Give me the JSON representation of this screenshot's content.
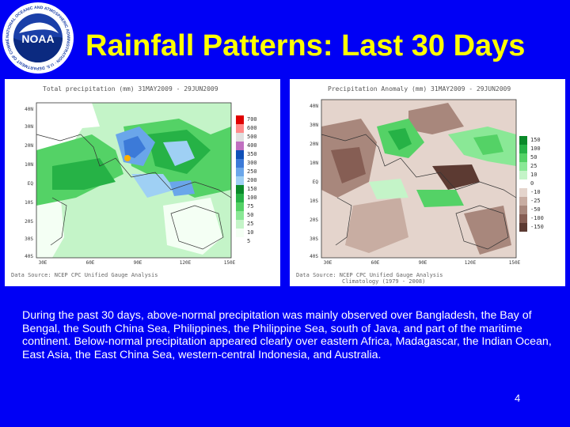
{
  "slide": {
    "title": "Rainfall Patterns: Last 30 Days",
    "logo_text": "NOAA",
    "logo_ring_text": "NATIONAL OCEANIC AND ATMOSPHERIC ADMINISTRATION · U.S. DEPARTMENT OF COMMERCE",
    "description": "During the past 30 days, above-normal precipitation was mainly observed over Bangladesh, the Bay of Bengal, the South China Sea, Philippines, the Philippine Sea, south of Java, and part of the maritime continent. Below-normal precipitation appeared clearly over eastern Africa, Madagascar, the Indian Ocean, East Asia, the East China Sea, western-central Indonesia, and Australia.",
    "page_number": "4"
  },
  "colors": {
    "background": "#0000f5",
    "title": "#ffff00",
    "text": "#ffffff"
  },
  "maps": {
    "total": {
      "title": "Total precipitation (mm) 31MAY2009 - 29JUN2009",
      "source": "Data Source: NCEP CPC Unified Gauge Analysis",
      "source_line2": "",
      "y_ticks": [
        "40N",
        "30N",
        "20N",
        "10N",
        "EQ",
        "10S",
        "20S",
        "30S",
        "40S"
      ],
      "x_ticks": [
        "30E",
        "60E",
        "90E",
        "120E",
        "150E"
      ],
      "legend": [
        {
          "label": "700",
          "color": "#e00000"
        },
        {
          "label": "600",
          "color": "#ff8a8a"
        },
        {
          "label": "500",
          "color": "#e0e0e0"
        },
        {
          "label": "400",
          "color": "#c070c0"
        },
        {
          "label": "350",
          "color": "#1050b8"
        },
        {
          "label": "300",
          "color": "#3c7ad8"
        },
        {
          "label": "250",
          "color": "#6aa6ea"
        },
        {
          "label": "200",
          "color": "#9fd0f4"
        },
        {
          "label": "150",
          "color": "#0a8a2a"
        },
        {
          "label": "100",
          "color": "#26b246"
        },
        {
          "label": "75",
          "color": "#54d266"
        },
        {
          "label": "50",
          "color": "#8ae896"
        },
        {
          "label": "25",
          "color": "#c4f4c8"
        },
        {
          "label": "10",
          "color": "#f4fff4"
        },
        {
          "label": "5",
          "color": "#ffffff"
        }
      ]
    },
    "anomaly": {
      "title": "Precipitation Anomaly (mm) 31MAY2009 - 29JUN2009",
      "source": "Data Source: NCEP CPC Unified Gauge Analysis",
      "source_line2": "Climatology (1979 - 2008)",
      "y_ticks": [
        "40N",
        "30N",
        "20N",
        "10N",
        "EQ",
        "10S",
        "20S",
        "30S",
        "40S"
      ],
      "x_ticks": [
        "30E",
        "60E",
        "90E",
        "120E",
        "150E"
      ],
      "legend": [
        {
          "label": "150",
          "color": "#0a8a2a"
        },
        {
          "label": "100",
          "color": "#26b246"
        },
        {
          "label": "50",
          "color": "#54d266"
        },
        {
          "label": "25",
          "color": "#8ae896"
        },
        {
          "label": "10",
          "color": "#c4f4c8"
        },
        {
          "label": "0",
          "color": "#ffffff"
        },
        {
          "label": "-10",
          "color": "#e4d4cc"
        },
        {
          "label": "-25",
          "color": "#c8ada2"
        },
        {
          "label": "-50",
          "color": "#a8877c"
        },
        {
          "label": "-100",
          "color": "#865e54"
        },
        {
          "label": "-150",
          "color": "#5c3a32"
        }
      ]
    }
  }
}
